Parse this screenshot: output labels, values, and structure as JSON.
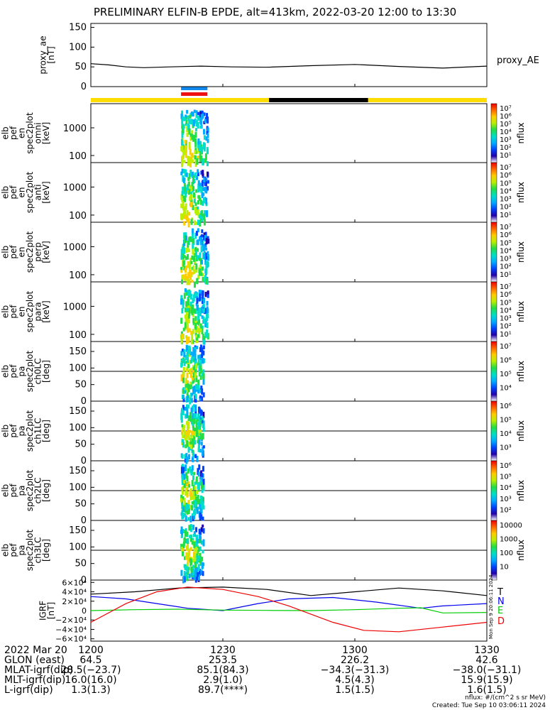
{
  "title": "PRELIMINARY ELFIN-B EPDE, alt=413km, 2022-03-20 12:00 to 13:30",
  "colors": {
    "sunlit": "#ffdd00",
    "shadow": "#000000",
    "marker_blue": "#1188ee",
    "marker_red": "#ee1111"
  },
  "chart_data": [
    {
      "type": "line",
      "name": "proxy_ae",
      "ylabel": [
        "proxy_ae",
        "[nT]"
      ],
      "yticks": [
        "150",
        "100",
        "50",
        "0"
      ],
      "ylim": [
        0,
        160
      ],
      "series": [
        {
          "name": "proxy_AE",
          "x": [
            0,
            4,
            8,
            12,
            18,
            25,
            32,
            40,
            50,
            60,
            70,
            80,
            90
          ],
          "values": [
            58,
            55,
            50,
            48,
            50,
            52,
            50,
            49,
            53,
            56,
            51,
            47,
            52
          ]
        }
      ]
    },
    {
      "type": "heatmap",
      "ylabel": [
        "elb",
        "pef",
        "en",
        "spec2plot",
        "omni",
        "[keV]"
      ],
      "yticks": [
        "1000",
        "100"
      ],
      "yscale": "log"
    },
    {
      "type": "heatmap",
      "ylabel": [
        "elb",
        "pef",
        "en",
        "spec2plot",
        "anti",
        "[keV]"
      ],
      "yticks": [
        "1000",
        "100"
      ],
      "yscale": "log"
    },
    {
      "type": "heatmap",
      "ylabel": [
        "elb",
        "pef",
        "en",
        "spec2plot",
        "perp",
        "[keV]"
      ],
      "yticks": [
        "1000",
        "100"
      ],
      "yscale": "log"
    },
    {
      "type": "heatmap",
      "ylabel": [
        "elb",
        "pef",
        "en",
        "spec2plot",
        "para",
        "[keV]"
      ],
      "yticks": [
        "1000",
        "100"
      ],
      "yscale": "log"
    },
    {
      "type": "heatmap",
      "ylabel": [
        "elb",
        "pef",
        "pa",
        "spec2plot",
        "ch0LC",
        "[deg]"
      ],
      "yticks": [
        "150",
        "100",
        "50",
        "0"
      ],
      "ylim": [
        0,
        180
      ]
    },
    {
      "type": "heatmap",
      "ylabel": [
        "elb",
        "pef",
        "pa",
        "spec2plot",
        "ch1LC",
        "[deg]"
      ],
      "yticks": [
        "150",
        "100",
        "50",
        "0"
      ],
      "ylim": [
        0,
        180
      ]
    },
    {
      "type": "heatmap",
      "ylabel": [
        "elb",
        "pef",
        "pa",
        "spec2plot",
        "ch2LC",
        "[deg]"
      ],
      "yticks": [
        "150",
        "100",
        "50",
        "0"
      ],
      "ylim": [
        0,
        180
      ]
    },
    {
      "type": "heatmap",
      "ylabel": [
        "elb",
        "pef",
        "pa",
        "spec2plot",
        "ch3LC",
        "[deg]"
      ],
      "yticks": [
        "150",
        "100",
        "50",
        "0"
      ],
      "ylim": [
        0,
        180
      ]
    },
    {
      "type": "line",
      "name": "igrf",
      "ylabel": [
        "IGRF",
        "[nT]"
      ],
      "yticks": [
        "6×10⁴",
        "4×10⁴",
        "2×10⁴",
        "0",
        "−2×10⁴",
        "−4×10⁴",
        "−6×10⁴"
      ],
      "ylim": [
        -65000,
        65000
      ],
      "series": [
        {
          "name": "T",
          "color": "#000000",
          "x": [
            0,
            10,
            20,
            30,
            40,
            50,
            60,
            70,
            80,
            90
          ],
          "values": [
            35000,
            40000,
            48000,
            50000,
            45000,
            32000,
            40000,
            48000,
            42000,
            32000
          ]
        },
        {
          "name": "N",
          "color": "#0000ee",
          "x": [
            0,
            8,
            15,
            22,
            30,
            38,
            45,
            55,
            65,
            75,
            80,
            90
          ],
          "values": [
            30000,
            25000,
            15000,
            5000,
            0,
            15000,
            25000,
            28000,
            18000,
            5000,
            10000,
            15000
          ]
        },
        {
          "name": "E",
          "color": "#00cc00",
          "x": [
            0,
            10,
            20,
            30,
            40,
            50,
            60,
            70,
            75,
            80,
            90
          ],
          "values": [
            0,
            2000,
            3000,
            1000,
            500,
            0,
            2000,
            5000,
            6000,
            -5000,
            -4000
          ]
        },
        {
          "name": "D",
          "color": "#ee0000",
          "x": [
            0,
            8,
            15,
            22,
            30,
            38,
            45,
            55,
            62,
            70,
            80,
            90
          ],
          "values": [
            -25000,
            15000,
            40000,
            50000,
            45000,
            30000,
            10000,
            -25000,
            -42000,
            -45000,
            -35000,
            -25000
          ]
        }
      ]
    }
  ],
  "colorbars": [
    {
      "label": "nflux",
      "ticks": [
        "10⁷",
        "10⁶",
        "10⁵",
        "10⁴",
        "10³",
        "10²",
        "10¹"
      ]
    },
    {
      "label": "nflux",
      "ticks": [
        "10⁷",
        "10⁶",
        "10⁵",
        "10⁴",
        "10³",
        "10²",
        "10¹"
      ]
    },
    {
      "label": "nflux",
      "ticks": [
        "10⁷",
        "10⁶",
        "10⁵",
        "10⁴",
        "10³",
        "10²",
        "10¹"
      ]
    },
    {
      "label": "nflux",
      "ticks": [
        "10⁷",
        "10⁶",
        "10⁵",
        "10⁴",
        "10³",
        "10²",
        "10¹"
      ]
    },
    {
      "label": "nflux",
      "ticks": [
        "10⁷",
        "10⁶",
        "10⁵",
        "10⁴"
      ]
    },
    {
      "label": "nflux",
      "ticks": [
        "10⁶",
        "10⁵",
        "10⁴",
        "10³"
      ]
    },
    {
      "label": "nflux",
      "ticks": [
        "10⁶",
        "10⁵",
        "10⁴",
        "10³",
        "10²"
      ]
    },
    {
      "label": "nflux",
      "ticks": [
        "10000",
        "1000",
        "100",
        "10"
      ]
    }
  ],
  "time_axis": {
    "ticks": [
      {
        "t": 0,
        "label": "1200"
      },
      {
        "t": 30,
        "label": "1230"
      },
      {
        "t": 60,
        "label": "1300"
      },
      {
        "t": 90,
        "label": "1330"
      }
    ]
  },
  "ephemeris": {
    "row_labels": [
      "2022 Mar 20",
      "GLON (east)",
      "MLAT-igrf(dip)",
      "MLT-igrf(dip)",
      "L-igrf(dip)"
    ],
    "columns": [
      [
        "1200",
        "64.5",
        "28.5(−23.7)",
        "16.0(16.0)",
        "1.3(1.3)"
      ],
      [
        "1230",
        "253.5",
        "85.1(84.3)",
        "2.9(1.0)",
        "89.7(****)"
      ],
      [
        "1300",
        "226.2",
        "−34.3(−31.3)",
        "4.5(4.3)",
        "1.5(1.5)"
      ],
      [
        "1330",
        "42.6",
        "−38.0(−31.1)",
        "15.9(15.9)",
        "1.6(1.5)"
      ]
    ]
  },
  "footer": {
    "units": "nflux: #/(cm^2 s sr MeV)",
    "created": "Created: Tue Sep 10 03:06:11 2024"
  },
  "side_stamp": "Mon Sep 9 20:06:11 2024"
}
